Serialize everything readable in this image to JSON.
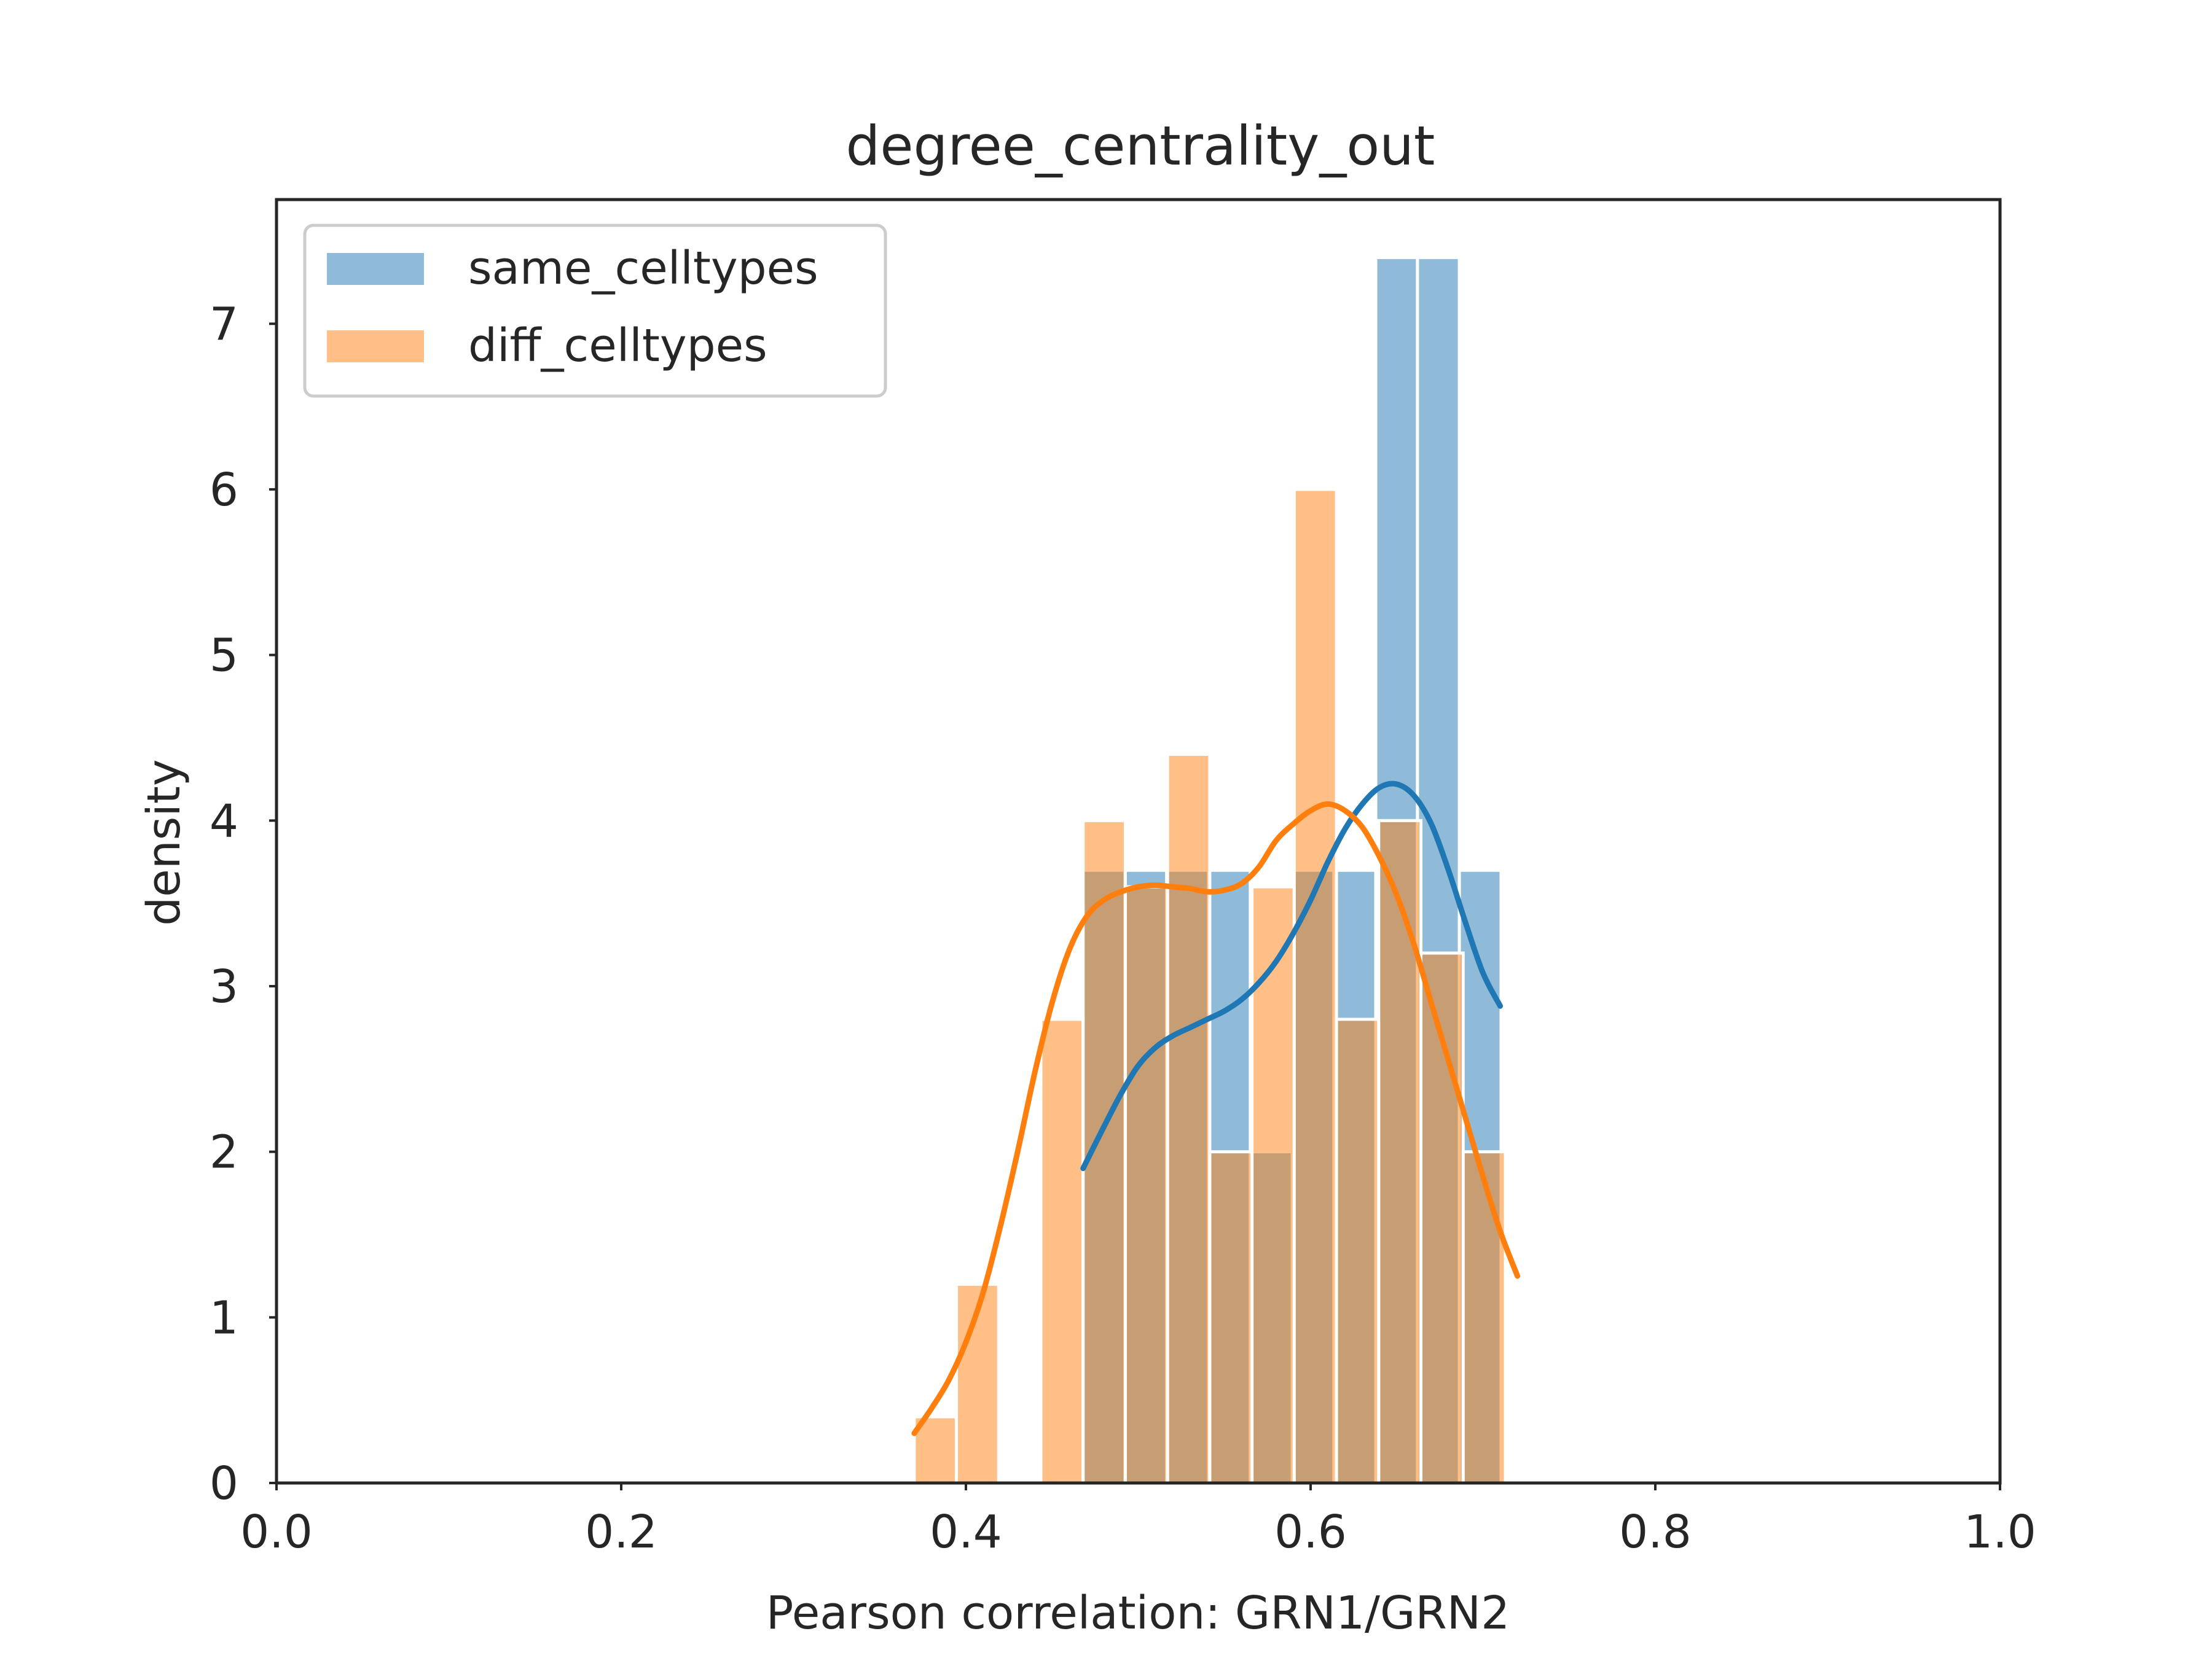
{
  "chart_data": {
    "type": "bar",
    "title": "degree_centrality_out",
    "xlabel": "Pearson correlation: GRN1/GRN2",
    "ylabel": "density",
    "xlim": [
      0.0,
      1.0
    ],
    "ylim": [
      0,
      7.75
    ],
    "xticks": [
      "0.0",
      "0.2",
      "0.4",
      "0.6",
      "0.8",
      "1.0"
    ],
    "yticks": [
      "0",
      "1",
      "2",
      "3",
      "4",
      "5",
      "6",
      "7"
    ],
    "grid": false,
    "legend_position": "upper left",
    "series": [
      {
        "name": "same_celltypes",
        "color": "#1f77b4",
        "bin_edges": [
          0.468,
          0.4923,
          0.5165,
          0.5408,
          0.565,
          0.5893,
          0.6135,
          0.6378,
          0.662,
          0.6863,
          0.7105
        ],
        "values": [
          3.7,
          3.7,
          3.7,
          3.7,
          2.0,
          3.7,
          3.7,
          7.4,
          7.4,
          3.7
        ],
        "kde_x": [
          0.468,
          0.48,
          0.49,
          0.5,
          0.51,
          0.52,
          0.53,
          0.54,
          0.55,
          0.56,
          0.57,
          0.58,
          0.59,
          0.6,
          0.61,
          0.62,
          0.63,
          0.64,
          0.65,
          0.66,
          0.67,
          0.68,
          0.69,
          0.7,
          0.71
        ],
        "kde_y": [
          1.9,
          2.15,
          2.35,
          2.52,
          2.63,
          2.7,
          2.75,
          2.8,
          2.85,
          2.92,
          3.02,
          3.15,
          3.32,
          3.52,
          3.75,
          3.95,
          4.1,
          4.2,
          4.22,
          4.15,
          3.98,
          3.7,
          3.38,
          3.08,
          2.88
        ]
      },
      {
        "name": "diff_celltypes",
        "color": "#ff7f0e",
        "bin_edges": [
          0.37,
          0.3945,
          0.419,
          0.4435,
          0.468,
          0.4925,
          0.517,
          0.5415,
          0.566,
          0.5905,
          0.615,
          0.6395,
          0.664,
          0.6885,
          0.713,
          0.7375
        ],
        "values": [
          0.4,
          1.2,
          0.0,
          2.8,
          4.0,
          3.6,
          4.4,
          2.0,
          3.6,
          6.0,
          2.8,
          4.0,
          3.2,
          2.0,
          0.0
        ],
        "kde_x": [
          0.37,
          0.38,
          0.39,
          0.4,
          0.41,
          0.42,
          0.43,
          0.44,
          0.45,
          0.46,
          0.47,
          0.48,
          0.49,
          0.5,
          0.51,
          0.52,
          0.53,
          0.54,
          0.55,
          0.56,
          0.57,
          0.58,
          0.59,
          0.6,
          0.61,
          0.62,
          0.63,
          0.64,
          0.65,
          0.66,
          0.67,
          0.68,
          0.69,
          0.7,
          0.71,
          0.72
        ],
        "kde_y": [
          0.3,
          0.45,
          0.62,
          0.85,
          1.15,
          1.55,
          2.0,
          2.48,
          2.9,
          3.22,
          3.42,
          3.52,
          3.57,
          3.6,
          3.61,
          3.6,
          3.59,
          3.57,
          3.58,
          3.62,
          3.72,
          3.88,
          3.98,
          4.06,
          4.1,
          4.06,
          3.96,
          3.78,
          3.55,
          3.25,
          2.9,
          2.55,
          2.2,
          1.85,
          1.52,
          1.25
        ]
      }
    ]
  }
}
